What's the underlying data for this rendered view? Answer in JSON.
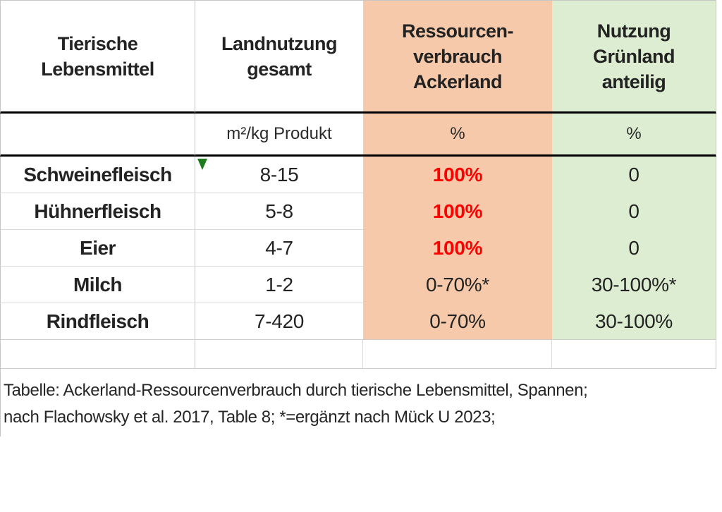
{
  "colors": {
    "ackerland_fill": "#F5C9AA",
    "gruenland_fill": "#DDEDD1",
    "highlight_red": "#FF0000",
    "grid_line": "#C6C6C6",
    "heavy_rule": "#000000",
    "error_marker_green": "#1E7C1E"
  },
  "table": {
    "headers": [
      {
        "label": "Tierische\nLebensmittel"
      },
      {
        "label": "Landnutzung\ngesamt"
      },
      {
        "label": "Ressourcen-\nverbrauch\nAckerland"
      },
      {
        "label": "Nutzung\nGrünland\nanteilig"
      }
    ],
    "units": {
      "landnutzung": "m²/kg Produkt",
      "ackerland": "%",
      "gruenland": "%"
    },
    "rows": [
      {
        "product": "Schweinefleisch",
        "landnutzung": "8-15",
        "ackerland": "100%",
        "gruenland": "0"
      },
      {
        "product": "Hühnerfleisch",
        "landnutzung": "5-8",
        "ackerland": "100%",
        "gruenland": "0"
      },
      {
        "product": "Eier",
        "landnutzung": "4-7",
        "ackerland": "100%",
        "gruenland": "0"
      },
      {
        "product": "Milch",
        "landnutzung": "1-2",
        "ackerland": "0-70%*",
        "gruenland": "30-100%*"
      },
      {
        "product": "Rindfleisch",
        "landnutzung": "7-420",
        "ackerland": "0-70%",
        "gruenland": "30-100%"
      }
    ]
  },
  "caption": {
    "line1": "Tabelle: Ackerland-Ressourcenverbrauch durch tierische Lebensmittel, Spannen;",
    "line2": "nach Flachowsky et al. 2017, Table 8; *=ergänzt nach Mück U 2023;"
  },
  "chart_data": {
    "type": "table",
    "title": "Ackerland-Ressourcenverbrauch durch tierische Lebensmittel, Spannen; nach Flachowsky et al. 2017, Table 8; *=ergänzt nach Mück U 2023",
    "columns": [
      "Tierische Lebensmittel",
      "Landnutzung gesamt (m²/kg Produkt)",
      "Ressourcenverbrauch Ackerland (%)",
      "Nutzung Grünland anteilig (%)"
    ],
    "rows": [
      [
        "Schweinefleisch",
        "8-15",
        "100%",
        "0"
      ],
      [
        "Hühnerfleisch",
        "5-8",
        "100%",
        "0"
      ],
      [
        "Eier",
        "4-7",
        "100%",
        "0"
      ],
      [
        "Milch",
        "1-2",
        "0-70%*",
        "30-100%*"
      ],
      [
        "Rindfleisch",
        "7-420",
        "0-70%",
        "30-100%"
      ]
    ],
    "notes": "100%-Werte in Rot hervorgehoben; Spalte Ackerland lachsfarben, Spalte Grünland hellgrün hinterlegt"
  }
}
